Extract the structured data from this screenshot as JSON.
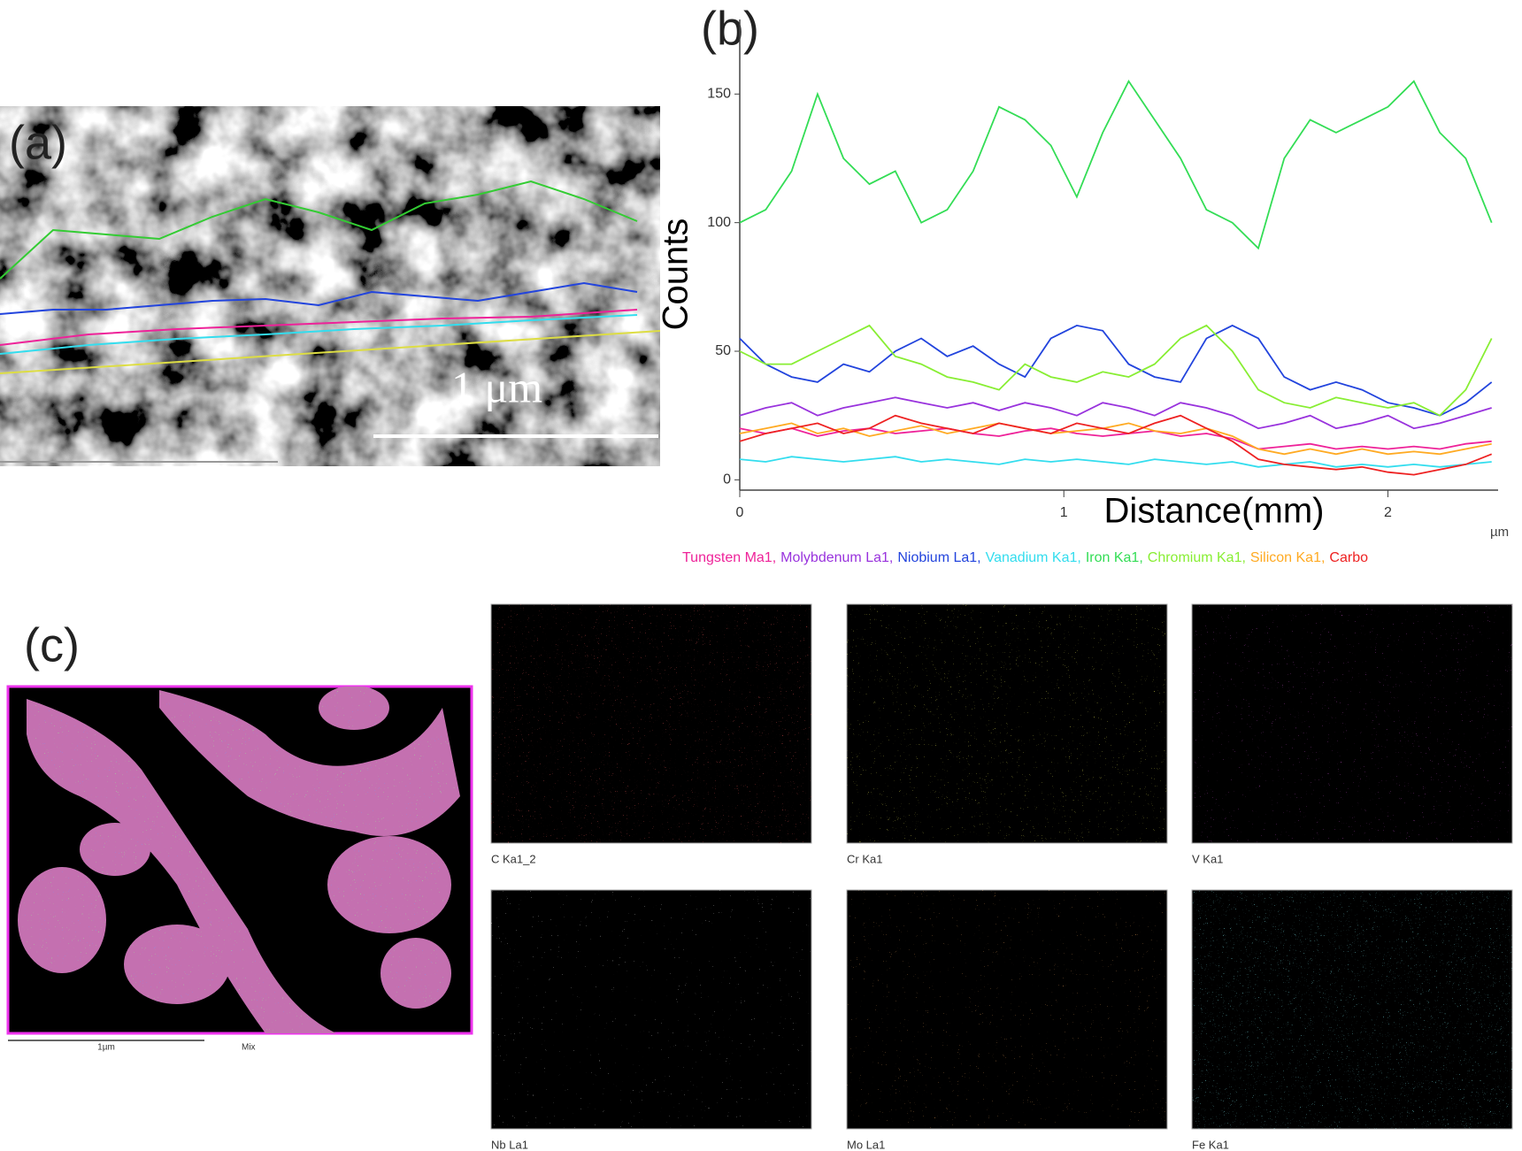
{
  "panels": {
    "a": {
      "label": "(a)",
      "scale_bar": "1 μm"
    },
    "c": {
      "label": "(c)",
      "scale_bar": "1µm",
      "mix_label": "Mix",
      "maps": [
        "C Ka1_2",
        "Cr Ka1",
        "V Ka1",
        "Nb La1",
        "Mo La1",
        "Fe Ka1"
      ]
    }
  },
  "chart_data": {
    "type": "line",
    "title": "(b)",
    "xlabel": "Distance(mm)",
    "xunit": "µm",
    "ylabel": "Counts",
    "xlim": [
      0,
      2.34
    ],
    "ylim": [
      -4,
      179
    ],
    "xticks": [
      0,
      1,
      2
    ],
    "yticks": [
      0,
      50,
      100,
      150
    ],
    "x": [
      0,
      0.08,
      0.16,
      0.24,
      0.32,
      0.4,
      0.48,
      0.56,
      0.64,
      0.72,
      0.8,
      0.88,
      0.96,
      1.04,
      1.12,
      1.2,
      1.28,
      1.36,
      1.44,
      1.52,
      1.6,
      1.68,
      1.76,
      1.84,
      1.92,
      2.0,
      2.08,
      2.16,
      2.24,
      2.32
    ],
    "series": [
      {
        "name": "Tungsten Ma1,",
        "color": "#ee2299",
        "values": [
          20,
          18,
          20,
          17,
          19,
          20,
          18,
          19,
          20,
          18,
          17,
          19,
          20,
          18,
          17,
          18,
          19,
          17,
          18,
          16,
          12,
          13,
          14,
          12,
          13,
          12,
          13,
          12,
          14,
          15
        ]
      },
      {
        "name": "Molybdenum La1,",
        "color": "#9933dd",
        "values": [
          25,
          28,
          30,
          25,
          28,
          30,
          32,
          30,
          28,
          30,
          27,
          30,
          28,
          25,
          30,
          28,
          25,
          30,
          28,
          25,
          20,
          22,
          25,
          20,
          22,
          25,
          20,
          22,
          25,
          28
        ]
      },
      {
        "name": "Niobium La1,",
        "color": "#2244dd",
        "values": [
          55,
          45,
          40,
          38,
          45,
          42,
          50,
          55,
          48,
          52,
          45,
          40,
          55,
          60,
          58,
          45,
          40,
          38,
          55,
          60,
          55,
          40,
          35,
          38,
          35,
          30,
          28,
          25,
          30,
          38
        ]
      },
      {
        "name": "Vanadium Ka1,",
        "color": "#33ddee",
        "values": [
          8,
          7,
          9,
          8,
          7,
          8,
          9,
          7,
          8,
          7,
          6,
          8,
          7,
          8,
          7,
          6,
          8,
          7,
          6,
          7,
          5,
          6,
          7,
          5,
          6,
          5,
          6,
          5,
          6,
          7
        ]
      },
      {
        "name": "Iron Ka1,",
        "color": "#33dd55",
        "values": [
          100,
          105,
          120,
          150,
          125,
          115,
          120,
          100,
          105,
          120,
          145,
          140,
          130,
          110,
          135,
          155,
          140,
          125,
          105,
          100,
          90,
          125,
          140,
          135,
          140,
          145,
          155,
          135,
          125,
          100
        ]
      },
      {
        "name": "Chromium Ka1,",
        "color": "#88ee33",
        "values": [
          50,
          45,
          45,
          50,
          55,
          60,
          48,
          45,
          40,
          38,
          35,
          45,
          40,
          38,
          42,
          40,
          45,
          55,
          60,
          50,
          35,
          30,
          28,
          32,
          30,
          28,
          30,
          25,
          35,
          55
        ]
      },
      {
        "name": "Silicon Ka1,",
        "color": "#ffaa22",
        "values": [
          18,
          20,
          22,
          18,
          20,
          17,
          19,
          21,
          18,
          20,
          22,
          20,
          18,
          19,
          20,
          22,
          19,
          18,
          20,
          17,
          12,
          10,
          12,
          10,
          12,
          10,
          11,
          10,
          12,
          14
        ]
      },
      {
        "name": "Carbo",
        "color": "#ee2222",
        "values": [
          15,
          18,
          20,
          22,
          18,
          20,
          25,
          22,
          20,
          18,
          22,
          20,
          18,
          22,
          20,
          18,
          22,
          25,
          20,
          15,
          8,
          6,
          5,
          4,
          5,
          3,
          2,
          4,
          6,
          10
        ]
      }
    ]
  }
}
